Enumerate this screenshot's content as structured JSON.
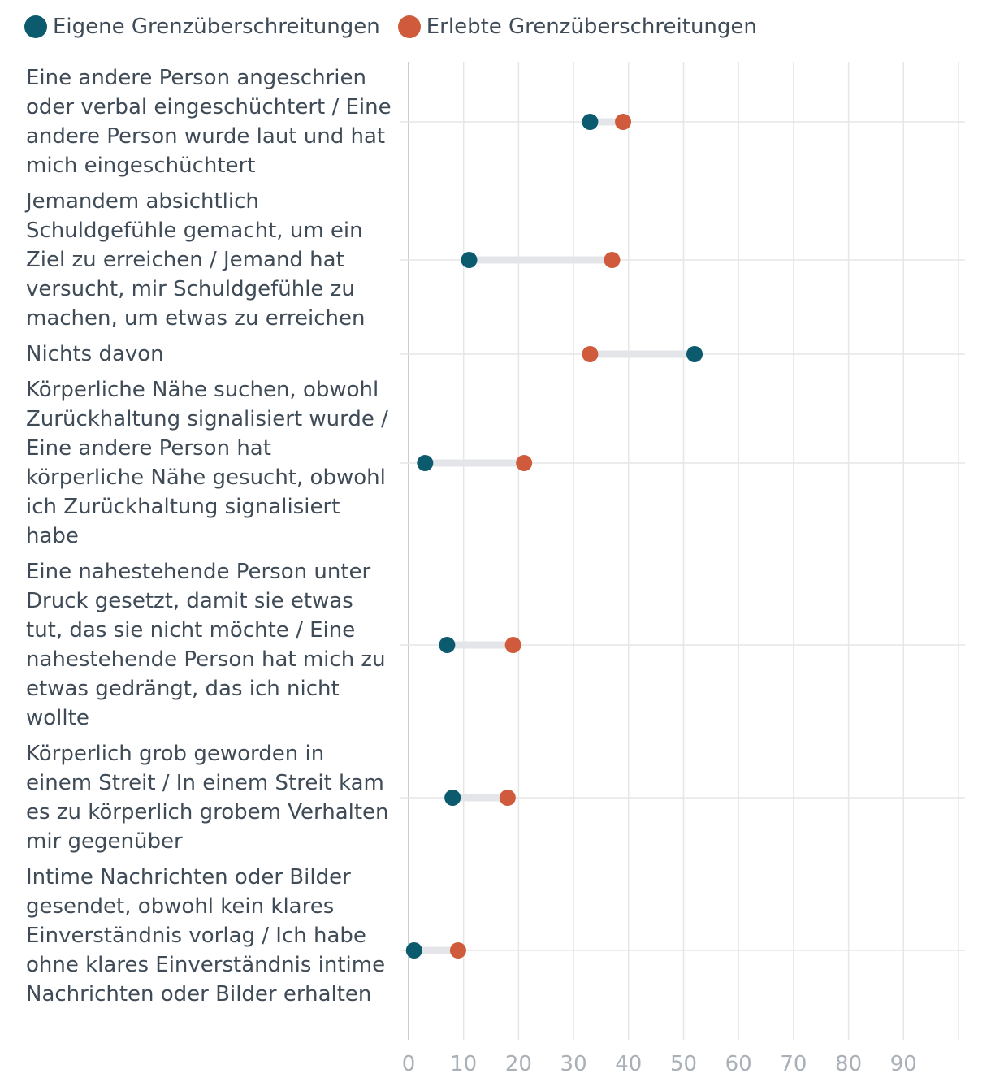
{
  "legend": {
    "own": "Eigene Grenzüberschreitungen",
    "experienced": "Erlebte Grenzüberschreitungen"
  },
  "colors": {
    "own": "#0b5a6e",
    "experienced": "#cf5a3c",
    "connector": "#e3e5e8",
    "grid": "#e6e6e6",
    "axis": "#cccccc",
    "text": "#3f4b57",
    "tick": "#a9b0b7"
  },
  "chart_data": {
    "type": "dumbbell",
    "title": "",
    "xlabel": "",
    "ylabel": "",
    "xlim": [
      0,
      100
    ],
    "xticks": [
      0,
      10,
      20,
      30,
      40,
      50,
      60,
      70,
      80,
      90
    ],
    "categories": [
      "Eine andere Person angeschrien oder verbal eingeschüchtert / Eine andere Person wurde laut und hat mich eingeschüchtert",
      "Jemandem absichtlich Schuldgefühle gemacht, um ein Ziel zu erreichen / Jemand hat versucht, mir Schuldgefühle zu machen, um etwas zu erreichen",
      "Nichts davon",
      "Körperliche Nähe suchen, obwohl Zurückhaltung signalisiert wurde / Eine andere Person hat körperliche Nähe gesucht, obwohl ich Zurückhaltung signalisiert habe",
      "Eine nahestehende Person unter Druck gesetzt, damit sie etwas tut, das sie nicht möchte / Eine nahestehende Person hat mich zu etwas gedrängt, das ich nicht wollte",
      "Körperlich grob geworden in einem Streit / In einem Streit kam es zu körperlich grobem Verhalten mir gegenüber",
      "Intime Nachrichten oder Bilder gesendet, obwohl kein klares Einverständnis vorlag / Ich habe ohne klares Einverständnis intime Nachrichten oder Bilder erhalten"
    ],
    "series": [
      {
        "name": "Eigene Grenzüberschreitungen",
        "values": [
          33,
          11,
          52,
          3,
          7,
          8,
          1
        ]
      },
      {
        "name": "Erlebte Grenzüberschreitungen",
        "values": [
          39,
          37,
          33,
          21,
          19,
          18,
          9
        ]
      }
    ]
  }
}
